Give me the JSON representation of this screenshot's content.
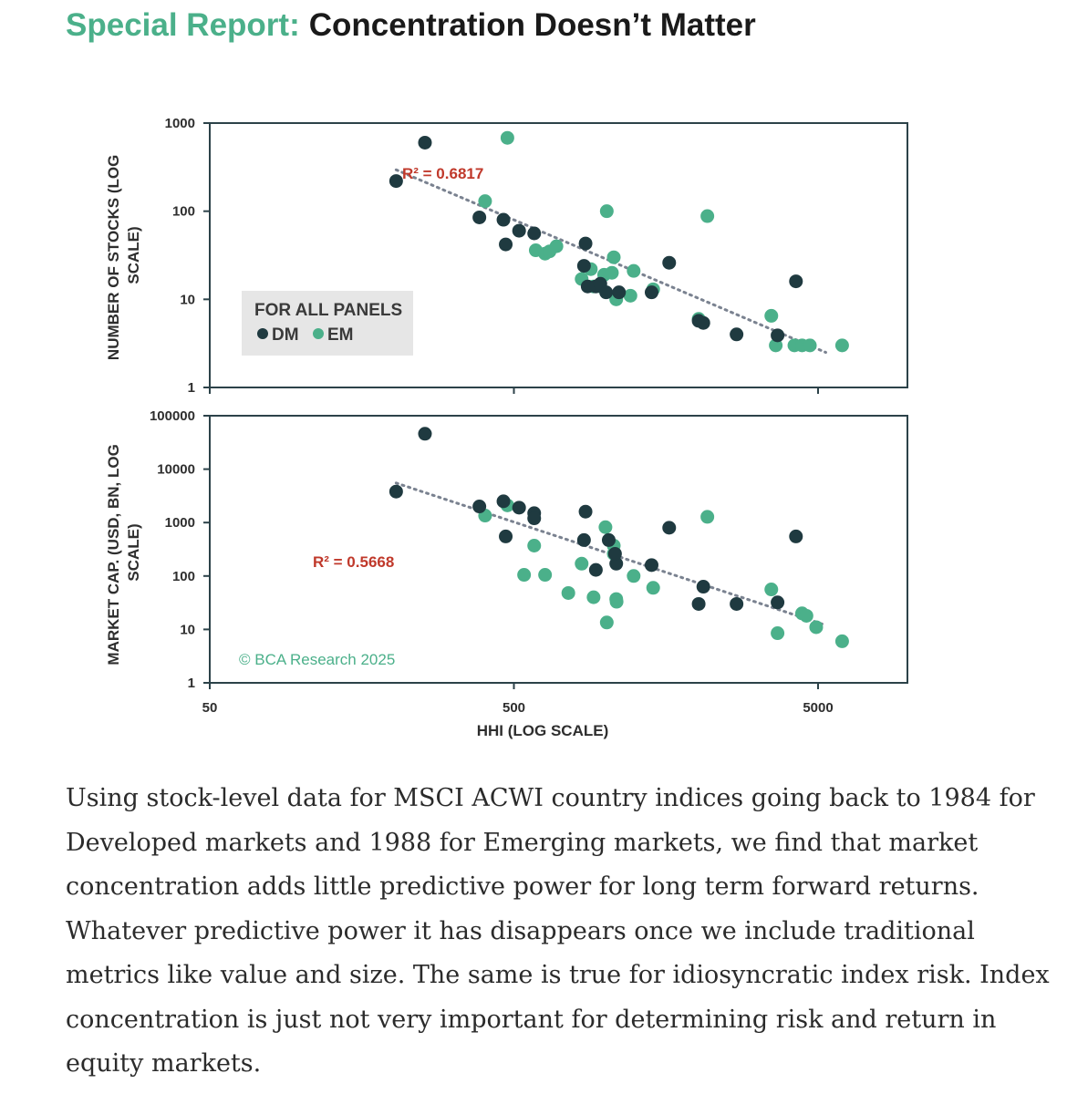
{
  "header": {
    "title_prefix": "Special Report:",
    "title_main": "Concentration Doesn’t Matter"
  },
  "colors": {
    "dm": "#1f3a40",
    "em": "#4bb08a",
    "frame": "#2c4249",
    "trend": "#7a8290",
    "r2": "#c0392b",
    "legend_bg": "#e6e6e6"
  },
  "legend": {
    "title": "FOR ALL PANELS",
    "dm": "DM",
    "em": "EM"
  },
  "watermark": "© BCA Research 2025",
  "paragraph": "Using stock-level data for MSCI ACWI country indices going back to 1984 for Developed markets and 1988 for Emerging markets, we find that market concentration adds little predictive power for long term forward returns. Whatever predictive power it has disappears once we include traditional metrics like value and size. The same is true for idiosyncratic index risk. Index concentration is just not very important for determining risk and return in equity markets.",
  "chart_data": [
    {
      "type": "scatter",
      "ylabel_line1": "NUMBER OF STOCKS (LOG",
      "ylabel_line2": "SCALE)",
      "xscale": "log",
      "yscale": "log",
      "xlim": [
        50,
        8000
      ],
      "ylim": [
        1,
        1000
      ],
      "yticks": [
        "1",
        "10",
        "100",
        "1000"
      ],
      "annotation": "R² = 0.6817",
      "trendline": {
        "x": [
          205,
          5300
        ],
        "y": [
          295,
          2.5
        ],
        "style": "dotted"
      },
      "series": [
        {
          "name": "DM",
          "points": [
            [
              205,
              220
            ],
            [
              255,
              600
            ],
            [
              385,
              85
            ],
            [
              462,
              80
            ],
            [
              470,
              42
            ],
            [
              520,
              60
            ],
            [
              583,
              56
            ],
            [
              860,
              43
            ],
            [
              850,
              24
            ],
            [
              874,
              14
            ],
            [
              930,
              14
            ],
            [
              962,
              15
            ],
            [
              1005,
              12
            ],
            [
              1108,
              12
            ],
            [
              1418,
              12
            ],
            [
              1620,
              26
            ],
            [
              2025,
              5.7
            ],
            [
              2098,
              5.4
            ],
            [
              2698,
              4
            ],
            [
              3680,
              3.9
            ],
            [
              4230,
              16
            ]
          ]
        },
        {
          "name": "EM",
          "points": [
            [
              476,
              680
            ],
            [
              402,
              130
            ],
            [
              590,
              36
            ],
            [
              633,
              33
            ],
            [
              655,
              35
            ],
            [
              690,
              40
            ],
            [
              835,
              17
            ],
            [
              895,
              22
            ],
            [
              914,
              14
            ],
            [
              962,
              14
            ],
            [
              1010,
              100
            ],
            [
              990,
              19
            ],
            [
              1050,
              20
            ],
            [
              1065,
              30
            ],
            [
              1085,
              10
            ],
            [
              1238,
              21
            ],
            [
              1208,
              11
            ],
            [
              1435,
              13
            ],
            [
              2025,
              6
            ],
            [
              2163,
              88
            ],
            [
              3510,
              6.5
            ],
            [
              3630,
              3
            ],
            [
              4180,
              3
            ],
            [
              4430,
              3
            ],
            [
              4700,
              3
            ],
            [
              6000,
              3
            ]
          ]
        }
      ]
    },
    {
      "type": "scatter",
      "ylabel_line1": "MARKET CAP. (USD, BN, LOG",
      "ylabel_line2": "SCALE)",
      "xlabel": "HHI (LOG SCALE)",
      "xscale": "log",
      "yscale": "log",
      "xlim": [
        50,
        8000
      ],
      "ylim": [
        1,
        100000
      ],
      "xticks": [
        "50",
        "500",
        "5000"
      ],
      "yticks": [
        "1",
        "10",
        "100",
        "1000",
        "10000",
        "100000"
      ],
      "annotation": "R² = 0.5668",
      "trendline": {
        "x": [
          205,
          5300
        ],
        "y": [
          5500,
          12
        ],
        "style": "dotted"
      },
      "series": [
        {
          "name": "DM",
          "points": [
            [
              205,
              3800
            ],
            [
              255,
              46000
            ],
            [
              385,
              2000
            ],
            [
              462,
              2500
            ],
            [
              470,
              550
            ],
            [
              520,
              1900
            ],
            [
              583,
              1500
            ],
            [
              583,
              1200
            ],
            [
              860,
              1600
            ],
            [
              850,
              470
            ],
            [
              930,
              130
            ],
            [
              1025,
              470
            ],
            [
              1085,
              170
            ],
            [
              1075,
              260
            ],
            [
              1418,
              160
            ],
            [
              1620,
              800
            ],
            [
              2025,
              30
            ],
            [
              2098,
              63
            ],
            [
              2698,
              30
            ],
            [
              3680,
              32
            ],
            [
              4230,
              550
            ]
          ]
        },
        {
          "name": "EM",
          "points": [
            [
              476,
              2100
            ],
            [
              402,
              1350
            ],
            [
              540,
              105
            ],
            [
              583,
              370
            ],
            [
              633,
              105
            ],
            [
              755,
              48
            ],
            [
              835,
              170
            ],
            [
              914,
              40
            ],
            [
              1010,
              13.5
            ],
            [
              1000,
              820
            ],
            [
              1065,
              260
            ],
            [
              1065,
              370
            ],
            [
              1085,
              37
            ],
            [
              1088,
              33
            ],
            [
              1238,
              100
            ],
            [
              1435,
              60
            ],
            [
              2163,
              1280
            ],
            [
              3510,
              56
            ],
            [
              3680,
              8.5
            ],
            [
              4430,
              20
            ],
            [
              4580,
              18
            ],
            [
              4930,
              11
            ],
            [
              6000,
              6
            ]
          ]
        }
      ]
    }
  ]
}
